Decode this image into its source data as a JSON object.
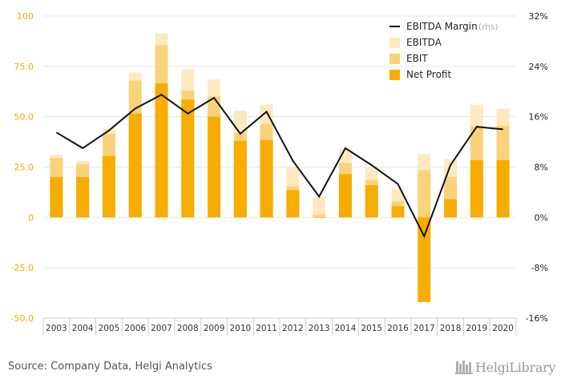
{
  "chart_data": {
    "type": "bar",
    "categories": [
      "2003",
      "2004",
      "2005",
      "2006",
      "2007",
      "2008",
      "2009",
      "2010",
      "2011",
      "2012",
      "2013",
      "2014",
      "2015",
      "2016",
      "2017",
      "2018",
      "2019",
      "2020"
    ],
    "series": [
      {
        "name": "EBITDA",
        "kind": "bar",
        "axis": "left",
        "values": [
          31,
          28,
          44,
          72,
          91.5,
          73.5,
          68.5,
          53,
          56,
          25,
          10,
          34,
          25,
          14,
          31.5,
          29,
          56,
          54
        ]
      },
      {
        "name": "EBIT",
        "kind": "bar",
        "axis": "left",
        "values": [
          29.5,
          26.5,
          41.5,
          68,
          85.5,
          63,
          60,
          42,
          46.5,
          15.5,
          1.5,
          27,
          18.5,
          8,
          23.5,
          20,
          45,
          45.5
        ]
      },
      {
        "name": "Net Profit",
        "kind": "bar",
        "axis": "left",
        "values": [
          20,
          20,
          30.5,
          51.5,
          66.5,
          58.5,
          50,
          38,
          38.5,
          13.5,
          0,
          21.5,
          16,
          5.5,
          -42,
          9,
          28.5,
          28.5
        ]
      },
      {
        "name": "EBITDA Margin",
        "kind": "line",
        "axis": "right",
        "values": [
          13.5,
          11,
          13.8,
          17.3,
          19.5,
          16.5,
          19,
          13.3,
          16.8,
          9,
          3.3,
          11,
          8.3,
          5.3,
          -3,
          8.3,
          14.4,
          14
        ]
      }
    ],
    "legend_labels": [
      "EBITDA Margin",
      "(rhs)",
      "EBITDA",
      "EBIT",
      "Net Profit"
    ],
    "left_axis": {
      "ticks": [
        "100",
        "75.0",
        "50.0",
        "25.0",
        "0",
        "-25.0",
        "-50.0"
      ],
      "ylim": [
        -50,
        100
      ]
    },
    "right_axis": {
      "ticks": [
        "32%",
        "24%",
        "16%",
        "8%",
        "0%",
        "-8%",
        "-16%"
      ],
      "ylim": [
        -16,
        32
      ]
    },
    "legend_position": "top-right",
    "grid": true,
    "colors": {
      "EBITDA": "#fde9bf",
      "EBIT": "#fbd27c",
      "Net Profit": "#f7ad00",
      "EBITDA Margin": "#111111",
      "axis_text": "#f2a800",
      "grid": "#e6e6e6"
    }
  },
  "footer": {
    "source": "Source: Company Data, Helgi Analytics",
    "brand": "HelgiLibrary"
  }
}
